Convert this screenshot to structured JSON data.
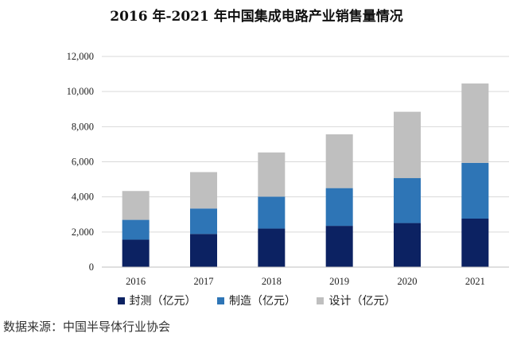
{
  "chart_data": {
    "type": "bar",
    "stacked": true,
    "title": "2016 年-2021 年中国集成电路产业销售量情况",
    "categories": [
      "2016",
      "2017",
      "2018",
      "2019",
      "2020",
      "2021"
    ],
    "series": [
      {
        "name": "封测（亿元）",
        "color": "#0c2262",
        "values": [
          1564,
          1890,
          2194,
          2350,
          2510,
          2763
        ]
      },
      {
        "name": "制造（亿元）",
        "color": "#2e75b6",
        "values": [
          1127,
          1448,
          1818,
          2150,
          2560,
          3176
        ]
      },
      {
        "name": "设计（亿元）",
        "color": "#bfbfbf",
        "values": [
          1644,
          2073,
          2519,
          3064,
          3778,
          4519
        ]
      }
    ],
    "yticks": [
      "0",
      "2,000",
      "4,000",
      "6,000",
      "8,000",
      "10,000",
      "12,000"
    ],
    "ylim": [
      0,
      12000
    ],
    "grid": true,
    "legend_position": "bottom"
  },
  "source_note": "数据来源：中国半导体行业协会"
}
